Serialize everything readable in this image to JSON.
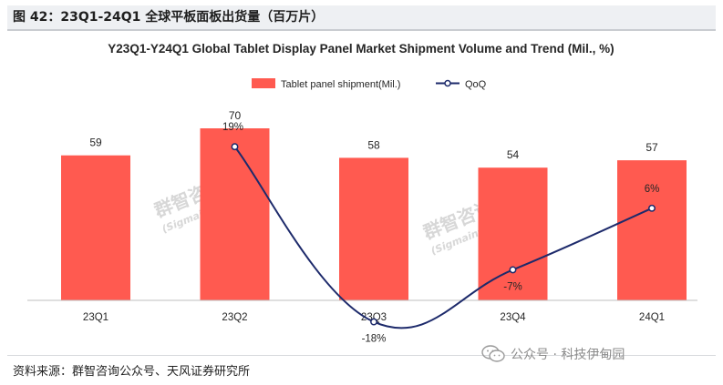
{
  "figure_title": "图 42：23Q1-24Q1 全球平板面板出货量（百万片）",
  "source_text": "资料来源：群智咨询公众号、天风证券研究所",
  "wechat_label": "公众号 · 科技伊甸园",
  "watermark": {
    "name": "群智咨询",
    "sub": "(Sigmaintell)"
  },
  "colors": {
    "bar": "#ff5a50",
    "line": "#1d2a6b",
    "text": "#262626",
    "axis": "#bfbfbf"
  },
  "chart_data": {
    "type": "bar",
    "title": "Y23Q1-Y24Q1 Global Tablet Display Panel Market Shipment Volume and Trend (Mil., %)",
    "categories": [
      "23Q1",
      "23Q2",
      "23Q3",
      "23Q4",
      "24Q1"
    ],
    "series": [
      {
        "name": "Tablet panel shipment(Mil.)",
        "type": "bar",
        "values": [
          59,
          70,
          58,
          54,
          57
        ],
        "labels": [
          "59",
          "70",
          "58",
          "54",
          "57"
        ]
      },
      {
        "name": "QoQ",
        "type": "line",
        "values": [
          null,
          19,
          -18,
          -7,
          6
        ],
        "labels": [
          "",
          "19%",
          "-18%",
          "-7%",
          "6%"
        ]
      }
    ],
    "legend_position": "top-center",
    "grid": false
  }
}
